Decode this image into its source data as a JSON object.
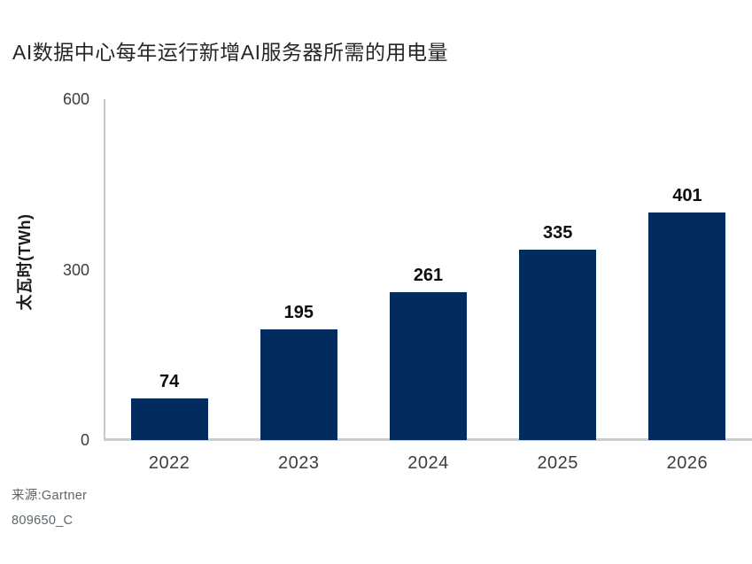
{
  "title": "AI数据中心每年运行新增AI服务器所需的用电量",
  "source": {
    "line1": "来源:Gartner",
    "line2": "809650_C"
  },
  "colors": {
    "bar": "#032b5e",
    "axis_line": "#c6c9ca",
    "title_text": "#262626",
    "tick_text": "#3d3d3d",
    "value_label_text": "#0d0d0d",
    "source_text": "#5c666b"
  },
  "chart_data": {
    "type": "bar",
    "title": "AI数据中心每年运行新增AI服务器所需的用电量",
    "categories": [
      "2022",
      "2023",
      "2024",
      "2025",
      "2026"
    ],
    "values": [
      74,
      195,
      261,
      335,
      401
    ],
    "xlabel": "",
    "ylabel": "太瓦时(TWh)",
    "ylim": [
      0,
      600
    ],
    "yticks": [
      0,
      300,
      600
    ],
    "grid": false,
    "legend": "none",
    "bar_color": "#032b5e",
    "value_labels": true
  }
}
